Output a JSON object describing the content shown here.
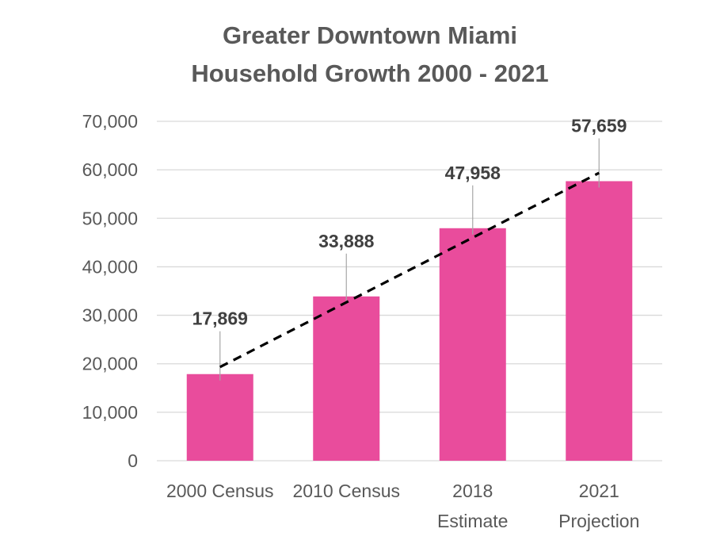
{
  "chart_data": {
    "type": "bar",
    "title_lines": [
      "Greater Downtown Miami",
      "Household Growth 2000 - 2021"
    ],
    "categories": [
      [
        "2000 Census"
      ],
      [
        "2010 Census"
      ],
      [
        "2018",
        "Estimate"
      ],
      [
        "2021",
        "Projection"
      ]
    ],
    "values": [
      17869,
      33888,
      47958,
      57659
    ],
    "data_labels": [
      "17,869",
      "33,888",
      "47,958",
      "57,659"
    ],
    "y_ticks": [
      0,
      10000,
      20000,
      30000,
      40000,
      50000,
      60000,
      70000
    ],
    "y_tick_labels": [
      "0",
      "10,000",
      "20,000",
      "30,000",
      "40,000",
      "50,000",
      "60,000",
      "70,000"
    ],
    "ylim": [
      0,
      70000
    ],
    "grid": true,
    "legend": "none",
    "trendline": {
      "type": "linear",
      "style": "dashed",
      "color": "#000000"
    },
    "bar_color": "#e94c9c"
  }
}
